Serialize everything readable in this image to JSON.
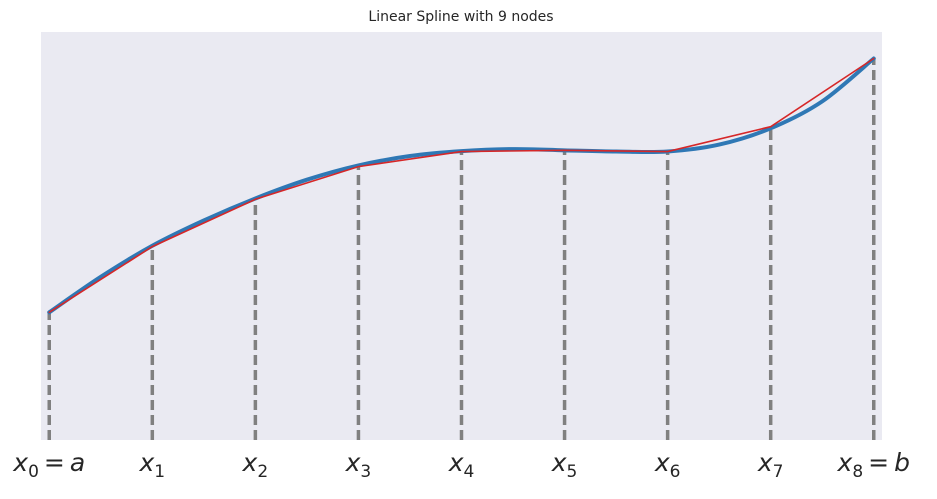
{
  "chart_data": {
    "type": "line",
    "title": "Linear Spline with 9 nodes",
    "xlabel": "",
    "ylabel": "",
    "grid": false,
    "background": "#eaeaf2",
    "x": [
      0,
      1,
      2,
      3,
      4,
      5,
      6,
      7,
      8
    ],
    "node_labels": [
      {
        "base": "x",
        "sub": "0",
        "suffix": " = a"
      },
      {
        "base": "x",
        "sub": "1",
        "suffix": ""
      },
      {
        "base": "x",
        "sub": "2",
        "suffix": ""
      },
      {
        "base": "x",
        "sub": "3",
        "suffix": ""
      },
      {
        "base": "x",
        "sub": "4",
        "suffix": ""
      },
      {
        "base": "x",
        "sub": "5",
        "suffix": ""
      },
      {
        "base": "x",
        "sub": "6",
        "suffix": ""
      },
      {
        "base": "x",
        "sub": "7",
        "suffix": ""
      },
      {
        "base": "x",
        "sub": "8",
        "suffix": " = b"
      }
    ],
    "xlim": [
      -0.08,
      8.08
    ],
    "ylim": [
      0,
      1
    ],
    "series": [
      {
        "kind": "function",
        "color": "#2f78b5",
        "x": [
          0,
          0.5,
          1,
          1.5,
          2,
          2.5,
          3,
          3.5,
          4,
          4.5,
          5,
          5.5,
          6,
          6.5,
          7,
          7.5,
          8
        ],
        "values": [
          0.313,
          0.4,
          0.476,
          0.538,
          0.592,
          0.638,
          0.673,
          0.696,
          0.708,
          0.713,
          0.71,
          0.707,
          0.707,
          0.724,
          0.764,
          0.83,
          0.935
        ]
      },
      {
        "kind": "linear spline",
        "color": "#d62728",
        "x": [
          0,
          1,
          2,
          3,
          4,
          5,
          6,
          7,
          8
        ],
        "values": [
          0.313,
          0.474,
          0.59,
          0.67,
          0.707,
          0.71,
          0.707,
          0.768,
          0.935
        ]
      }
    ],
    "node_lines": {
      "color": "#808080",
      "style": "dashed"
    }
  }
}
